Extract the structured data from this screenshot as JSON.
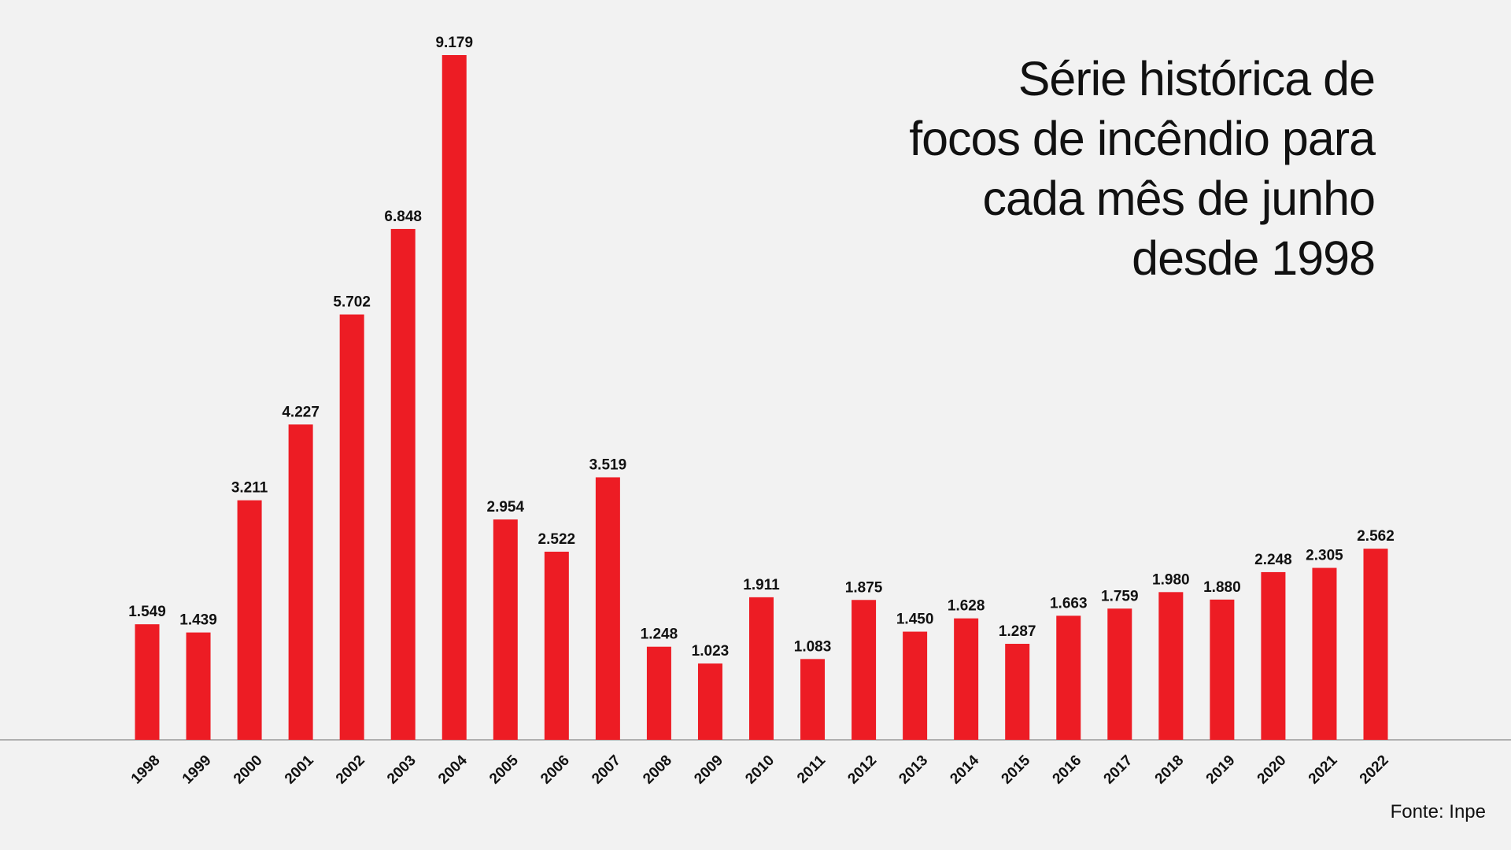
{
  "title_lines": [
    "Série histórica de",
    "focos de incêndio para",
    "cada mês de junho",
    "desde 1998"
  ],
  "source": "Fonte: Inpe",
  "colors": {
    "bar": "#ed1c24",
    "background": "#f2f2f2",
    "baseline": "#999999"
  },
  "chart_data": {
    "type": "bar",
    "title": "Série histórica de focos de incêndio para cada mês de junho desde 1998",
    "xlabel": "",
    "ylabel": "",
    "grid": false,
    "legend": "none",
    "categories": [
      "1998",
      "1999",
      "2000",
      "2001",
      "2002",
      "2003",
      "2004",
      "2005",
      "2006",
      "2007",
      "2008",
      "2009",
      "2010",
      "2011",
      "2012",
      "2013",
      "2014",
      "2015",
      "2016",
      "2017",
      "2018",
      "2019",
      "2020",
      "2021",
      "2022"
    ],
    "values": [
      1549,
      1439,
      3211,
      4227,
      5702,
      6848,
      9179,
      2954,
      2522,
      3519,
      1248,
      1023,
      1911,
      1083,
      1875,
      1450,
      1628,
      1287,
      1663,
      1759,
      1980,
      1880,
      2248,
      2305,
      2562
    ],
    "value_labels": [
      "1.549",
      "1.439",
      "3.211",
      "4.227",
      "5.702",
      "6.848",
      "9.179",
      "2.954",
      "2.522",
      "3.519",
      "1.248",
      "1.023",
      "1.911",
      "1.083",
      "1.875",
      "1.450",
      "1.628",
      "1.287",
      "1.663",
      "1.759",
      "1.980",
      "1.880",
      "2.248",
      "2.305",
      "2.562"
    ],
    "ylim": [
      0,
      9179
    ]
  }
}
